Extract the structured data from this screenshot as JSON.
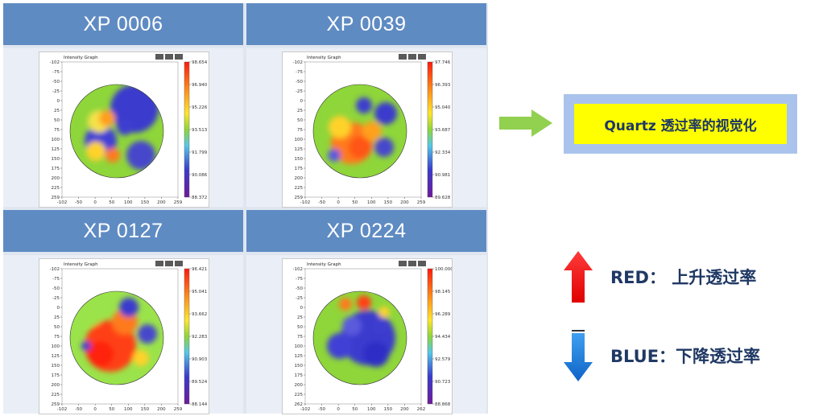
{
  "panels": [
    {
      "title": "XP 0006",
      "graph_title": "Intensity Graph",
      "y_ticks": [
        "-102",
        "-75",
        "-50",
        "-25",
        "0",
        "25",
        "50",
        "75",
        "100",
        "125",
        "150",
        "175",
        "200",
        "225",
        "259"
      ],
      "x_ticks": [
        "-102",
        "-50",
        "0",
        "50",
        "100",
        "150",
        "200",
        "259"
      ],
      "scale_ticks": [
        "98.654",
        "96.940",
        "95.226",
        "93.513",
        "91.799",
        "90.086",
        "88.372"
      ],
      "blobs": [
        [
          "#3a3acd",
          22,
          -28,
          30
        ],
        [
          "#4040d6",
          -20,
          12,
          20
        ],
        [
          "#4747cc",
          30,
          30,
          18
        ],
        [
          "#f5e24a",
          -22,
          -12,
          14
        ],
        [
          "#ff9d1f",
          -12,
          -16,
          10
        ],
        [
          "#ffd22c",
          -26,
          25,
          12
        ],
        [
          "#ff7a1a",
          -5,
          30,
          9
        ],
        [
          "#3d3dd0",
          10,
          -5,
          10
        ]
      ],
      "base": "#8fd63a"
    },
    {
      "title": "XP 0039",
      "graph_title": "Intensity Graph",
      "y_ticks": [
        "-102",
        "-75",
        "-50",
        "-25",
        "0",
        "25",
        "50",
        "75",
        "100",
        "125",
        "150",
        "175",
        "200",
        "225",
        "259"
      ],
      "x_ticks": [
        "-102",
        "-50",
        "0",
        "50",
        "100",
        "150",
        "200",
        "259"
      ],
      "scale_ticks": [
        "97.746",
        "96.393",
        "95.040",
        "93.687",
        "92.334",
        "90.981",
        "89.628"
      ],
      "blobs": [
        [
          "#ff7a1a",
          -10,
          15,
          26
        ],
        [
          "#ff5517",
          0,
          20,
          14
        ],
        [
          "#ffd22c",
          -25,
          -5,
          14
        ],
        [
          "#3a3acd",
          32,
          -22,
          14
        ],
        [
          "#4747cc",
          30,
          20,
          12
        ],
        [
          "#3d3dd0",
          5,
          -32,
          10
        ],
        [
          "#ffa11f",
          15,
          0,
          12
        ],
        [
          "#5a5add",
          -32,
          30,
          8
        ]
      ],
      "base": "#8fd63a"
    },
    {
      "title": "XP 0127",
      "graph_title": "Intensity Graph",
      "y_ticks": [
        "-102",
        "-75",
        "-50",
        "-25",
        "0",
        "25",
        "50",
        "75",
        "100",
        "125",
        "150",
        "175",
        "200",
        "225",
        "259"
      ],
      "x_ticks": [
        "-102",
        "-50",
        "0",
        "50",
        "100",
        "150",
        "200",
        "259"
      ],
      "scale_ticks": [
        "96.421",
        "95.041",
        "93.662",
        "92.283",
        "90.903",
        "89.524",
        "88.144"
      ],
      "blobs": [
        [
          "#ff3f14",
          -8,
          10,
          32
        ],
        [
          "#ff2010",
          -20,
          20,
          16
        ],
        [
          "#ff7a1a",
          10,
          -20,
          16
        ],
        [
          "#3a3acd",
          15,
          -38,
          12
        ],
        [
          "#4747cc",
          38,
          -5,
          12
        ],
        [
          "#ffd22c",
          30,
          25,
          10
        ],
        [
          "#9be34a",
          -30,
          -25,
          10
        ],
        [
          "#3d3dd0",
          -38,
          10,
          6
        ]
      ],
      "base": "#9be34a"
    },
    {
      "title": "XP 0224",
      "graph_title": "Intensity Graph",
      "y_ticks": [
        "-102",
        "-75",
        "-50",
        "-25",
        "0",
        "25",
        "50",
        "75",
        "100",
        "125",
        "150",
        "175",
        "200",
        "225",
        "262"
      ],
      "x_ticks": [
        "-102",
        "-50",
        "0",
        "50",
        "100",
        "150",
        "200",
        "262"
      ],
      "scale_ticks": [
        "100.000",
        "98.145",
        "96.289",
        "94.434",
        "92.579",
        "90.723",
        "88.868"
      ],
      "blobs": [
        [
          "#3a3acd",
          10,
          0,
          34
        ],
        [
          "#4040d6",
          -25,
          10,
          16
        ],
        [
          "#2f2fc6",
          20,
          20,
          16
        ],
        [
          "#ff3f14",
          5,
          -44,
          9
        ],
        [
          "#ff7a1a",
          -18,
          -42,
          8
        ],
        [
          "#ffd22c",
          30,
          -32,
          7
        ],
        [
          "#5a5add",
          -10,
          -15,
          12
        ],
        [
          "#3d3dd0",
          25,
          -15,
          10
        ]
      ],
      "base": "#8fd63a"
    }
  ],
  "title_box": {
    "label": "Quartz 透过率的视觉化"
  },
  "legend": {
    "red": {
      "label": "RED： 上升透过率",
      "color": "#ff0000"
    },
    "blue": {
      "label": "BLUE：下降透过率",
      "color": "#1e7fdc"
    }
  },
  "colors": {
    "header_bg": "#5f8bc3",
    "arrow_green": "#92d050",
    "title_box_bg": "#a9c3ec",
    "title_inner_bg": "#ffff00",
    "text_navy": "#1f3864"
  }
}
